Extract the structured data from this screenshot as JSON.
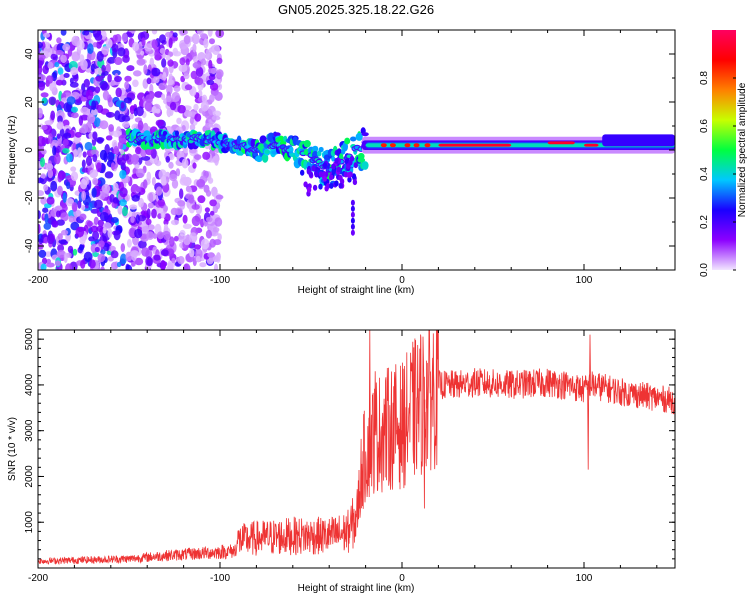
{
  "chart_data": [
    {
      "type": "heatmap",
      "title": "GN05.2025.325.18.22.G26",
      "xlabel": "Height of straight line (km)",
      "ylabel": "Frequency (Hz)",
      "xlim": [
        -200,
        150
      ],
      "ylim": [
        -50,
        50
      ],
      "xticks": [
        -200,
        -100,
        0,
        100
      ],
      "yticks": [
        -40,
        -20,
        0,
        20,
        40
      ],
      "colorbar": {
        "label": "Normalized spectral amplitude",
        "range": [
          0,
          1
        ],
        "ticks": [
          "0.0",
          "0.2",
          "0.4",
          "0.6",
          "0.8"
        ],
        "colors": [
          "#f2e6ff",
          "#8c00ff",
          "#1a00ff",
          "#00c8ff",
          "#00ff40",
          "#c8ff00",
          "#ff8000",
          "#ff0000",
          "#ff0060"
        ]
      },
      "ridge": {
        "x": [
          -150,
          -140,
          -130,
          -120,
          -110,
          -100,
          -90,
          -80,
          -70,
          -60,
          -50,
          -40,
          -30,
          -25,
          -20,
          -10,
          0,
          10,
          20,
          40,
          60,
          80,
          100,
          120,
          150
        ],
        "freq": [
          5,
          4,
          5,
          4,
          5,
          3,
          2,
          0,
          2,
          0,
          -3,
          -8,
          -3,
          0,
          1,
          2,
          2,
          2,
          2,
          2,
          2,
          3,
          2,
          2,
          3
        ]
      },
      "noise_region_x": [
        -200,
        -100
      ]
    },
    {
      "type": "line",
      "xlabel": "Height of straight line (km)",
      "ylabel": "SNR (10 * v/v)",
      "xlim": [
        -200,
        150
      ],
      "ylim": [
        0,
        5200
      ],
      "xticks": [
        -200,
        -100,
        0,
        100
      ],
      "yticks": [
        1000,
        2000,
        3000,
        4000,
        5000
      ],
      "color": "#ee3333",
      "envelope": {
        "x": [
          -200,
          -150,
          -130,
          -100,
          -92,
          -90,
          -80,
          -60,
          -40,
          -30,
          -25,
          -22,
          -20,
          -17,
          -15,
          -10,
          -5,
          0,
          5,
          10,
          15,
          20,
          30,
          40,
          60,
          80,
          90,
          100,
          102,
          104,
          110,
          120,
          150
        ],
        "y": [
          150,
          200,
          270,
          350,
          370,
          600,
          650,
          700,
          700,
          780,
          1100,
          2200,
          2500,
          2800,
          2900,
          3000,
          3100,
          3100,
          3400,
          3600,
          3800,
          4000,
          4000,
          4050,
          4000,
          4050,
          4000,
          3900,
          3950,
          4000,
          3950,
          3850,
          3650
        ]
      },
      "spikes": [
        {
          "x": -18,
          "y": 5200
        },
        {
          "x": -15,
          "y": 4300
        },
        {
          "x": 102,
          "y": 2150
        },
        {
          "x": 103,
          "y": 5100
        },
        {
          "x": 12,
          "y": 1300
        }
      ]
    }
  ]
}
